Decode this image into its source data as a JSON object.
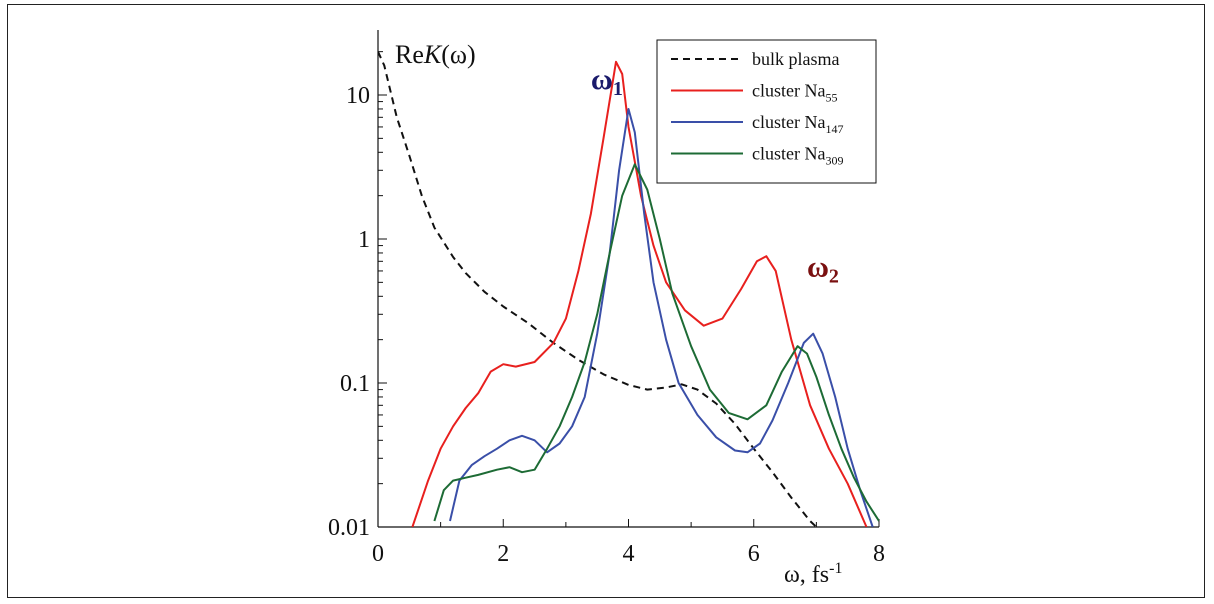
{
  "chart_data": {
    "type": "line",
    "title": "",
    "ylabel": {
      "prefix": "Re",
      "italic": "K",
      "suffix": "(ω)"
    },
    "xlabel": {
      "base": "ω, fs",
      "sup": "-1"
    },
    "xlim": [
      0,
      8
    ],
    "ylim": [
      0.01,
      30
    ],
    "yscale": "log",
    "grid": false,
    "legend_position": "top-right",
    "x_ticks": [
      {
        "value": 0,
        "label": "0"
      },
      {
        "value": 2,
        "label": "2"
      },
      {
        "value": 4,
        "label": "4"
      },
      {
        "value": 6,
        "label": "6"
      },
      {
        "value": 8,
        "label": "8"
      }
    ],
    "y_ticks": [
      {
        "value": 0.01,
        "label": "0.01"
      },
      {
        "value": 0.1,
        "label": "0.1"
      },
      {
        "value": 1,
        "label": "1"
      },
      {
        "value": 10,
        "label": "10"
      }
    ],
    "annotations": [
      {
        "base": "ω",
        "sub": "1",
        "x": 3.4,
        "y": 11,
        "color": "#1b1b6b"
      },
      {
        "base": "ω",
        "sub": "2",
        "x": 6.85,
        "y": 0.55,
        "color": "#7a1010"
      }
    ],
    "series": [
      {
        "name": "bulk plasma",
        "legend_base": "bulk plasma",
        "legend_sub": "",
        "color": "#111111",
        "dash": true,
        "points": [
          [
            0.0,
            20
          ],
          [
            0.1,
            16
          ],
          [
            0.3,
            7
          ],
          [
            0.5,
            3.8
          ],
          [
            0.7,
            2
          ],
          [
            0.9,
            1.2
          ],
          [
            1.2,
            0.75
          ],
          [
            1.4,
            0.58
          ],
          [
            1.7,
            0.43
          ],
          [
            2.0,
            0.34
          ],
          [
            2.4,
            0.26
          ],
          [
            2.8,
            0.19
          ],
          [
            3.2,
            0.145
          ],
          [
            3.6,
            0.115
          ],
          [
            4.0,
            0.097
          ],
          [
            4.3,
            0.09
          ],
          [
            4.6,
            0.093
          ],
          [
            4.85,
            0.098
          ],
          [
            5.1,
            0.09
          ],
          [
            5.4,
            0.072
          ],
          [
            5.7,
            0.052
          ],
          [
            6.0,
            0.035
          ],
          [
            6.3,
            0.024
          ],
          [
            6.6,
            0.016
          ],
          [
            6.9,
            0.011
          ],
          [
            7.0,
            0.01
          ]
        ]
      },
      {
        "name": "cluster Na55",
        "legend_base": "cluster Na",
        "legend_sub": "55",
        "color": "#e8201e",
        "dash": false,
        "points": [
          [
            0.55,
            0.01
          ],
          [
            0.8,
            0.021
          ],
          [
            1.0,
            0.035
          ],
          [
            1.2,
            0.05
          ],
          [
            1.4,
            0.067
          ],
          [
            1.6,
            0.085
          ],
          [
            1.8,
            0.12
          ],
          [
            2.0,
            0.135
          ],
          [
            2.2,
            0.13
          ],
          [
            2.5,
            0.14
          ],
          [
            2.8,
            0.19
          ],
          [
            3.0,
            0.28
          ],
          [
            3.2,
            0.6
          ],
          [
            3.4,
            1.5
          ],
          [
            3.6,
            5.0
          ],
          [
            3.8,
            17
          ],
          [
            3.9,
            14
          ],
          [
            4.0,
            6
          ],
          [
            4.2,
            2.0
          ],
          [
            4.4,
            0.9
          ],
          [
            4.6,
            0.5
          ],
          [
            4.9,
            0.32
          ],
          [
            5.2,
            0.25
          ],
          [
            5.5,
            0.28
          ],
          [
            5.8,
            0.45
          ],
          [
            6.05,
            0.7
          ],
          [
            6.2,
            0.76
          ],
          [
            6.35,
            0.6
          ],
          [
            6.6,
            0.2
          ],
          [
            6.9,
            0.07
          ],
          [
            7.2,
            0.035
          ],
          [
            7.5,
            0.02
          ],
          [
            7.8,
            0.01
          ]
        ]
      },
      {
        "name": "cluster Na147",
        "legend_base": "cluster Na",
        "legend_sub": "147",
        "color": "#3a4fa8",
        "dash": false,
        "points": [
          [
            1.15,
            0.011
          ],
          [
            1.3,
            0.021
          ],
          [
            1.5,
            0.027
          ],
          [
            1.7,
            0.031
          ],
          [
            1.9,
            0.035
          ],
          [
            2.1,
            0.04
          ],
          [
            2.3,
            0.043
          ],
          [
            2.5,
            0.04
          ],
          [
            2.7,
            0.033
          ],
          [
            2.9,
            0.038
          ],
          [
            3.1,
            0.05
          ],
          [
            3.3,
            0.08
          ],
          [
            3.5,
            0.22
          ],
          [
            3.7,
            0.8
          ],
          [
            3.85,
            3.0
          ],
          [
            4.0,
            8.0
          ],
          [
            4.1,
            5.5
          ],
          [
            4.25,
            1.5
          ],
          [
            4.4,
            0.5
          ],
          [
            4.6,
            0.2
          ],
          [
            4.8,
            0.1
          ],
          [
            5.1,
            0.06
          ],
          [
            5.4,
            0.042
          ],
          [
            5.7,
            0.034
          ],
          [
            5.9,
            0.033
          ],
          [
            6.1,
            0.038
          ],
          [
            6.3,
            0.055
          ],
          [
            6.55,
            0.1
          ],
          [
            6.8,
            0.19
          ],
          [
            6.95,
            0.22
          ],
          [
            7.1,
            0.16
          ],
          [
            7.3,
            0.08
          ],
          [
            7.5,
            0.035
          ],
          [
            7.7,
            0.018
          ],
          [
            7.9,
            0.01
          ]
        ]
      },
      {
        "name": "cluster Na309",
        "legend_base": "cluster Na",
        "legend_sub": "309",
        "color": "#1d6b35",
        "dash": false,
        "points": [
          [
            0.9,
            0.011
          ],
          [
            1.05,
            0.018
          ],
          [
            1.2,
            0.021
          ],
          [
            1.4,
            0.022
          ],
          [
            1.6,
            0.023
          ],
          [
            1.9,
            0.025
          ],
          [
            2.1,
            0.026
          ],
          [
            2.3,
            0.024
          ],
          [
            2.5,
            0.025
          ],
          [
            2.7,
            0.035
          ],
          [
            2.9,
            0.05
          ],
          [
            3.1,
            0.08
          ],
          [
            3.3,
            0.14
          ],
          [
            3.5,
            0.3
          ],
          [
            3.7,
            0.8
          ],
          [
            3.9,
            2.0
          ],
          [
            4.1,
            3.3
          ],
          [
            4.3,
            2.2
          ],
          [
            4.5,
            1.0
          ],
          [
            4.7,
            0.42
          ],
          [
            5.0,
            0.18
          ],
          [
            5.3,
            0.09
          ],
          [
            5.6,
            0.062
          ],
          [
            5.9,
            0.056
          ],
          [
            6.2,
            0.07
          ],
          [
            6.45,
            0.12
          ],
          [
            6.7,
            0.18
          ],
          [
            6.85,
            0.16
          ],
          [
            7.0,
            0.11
          ],
          [
            7.2,
            0.06
          ],
          [
            7.4,
            0.035
          ],
          [
            7.6,
            0.022
          ],
          [
            7.8,
            0.015
          ],
          [
            8.0,
            0.011
          ]
        ]
      }
    ]
  }
}
